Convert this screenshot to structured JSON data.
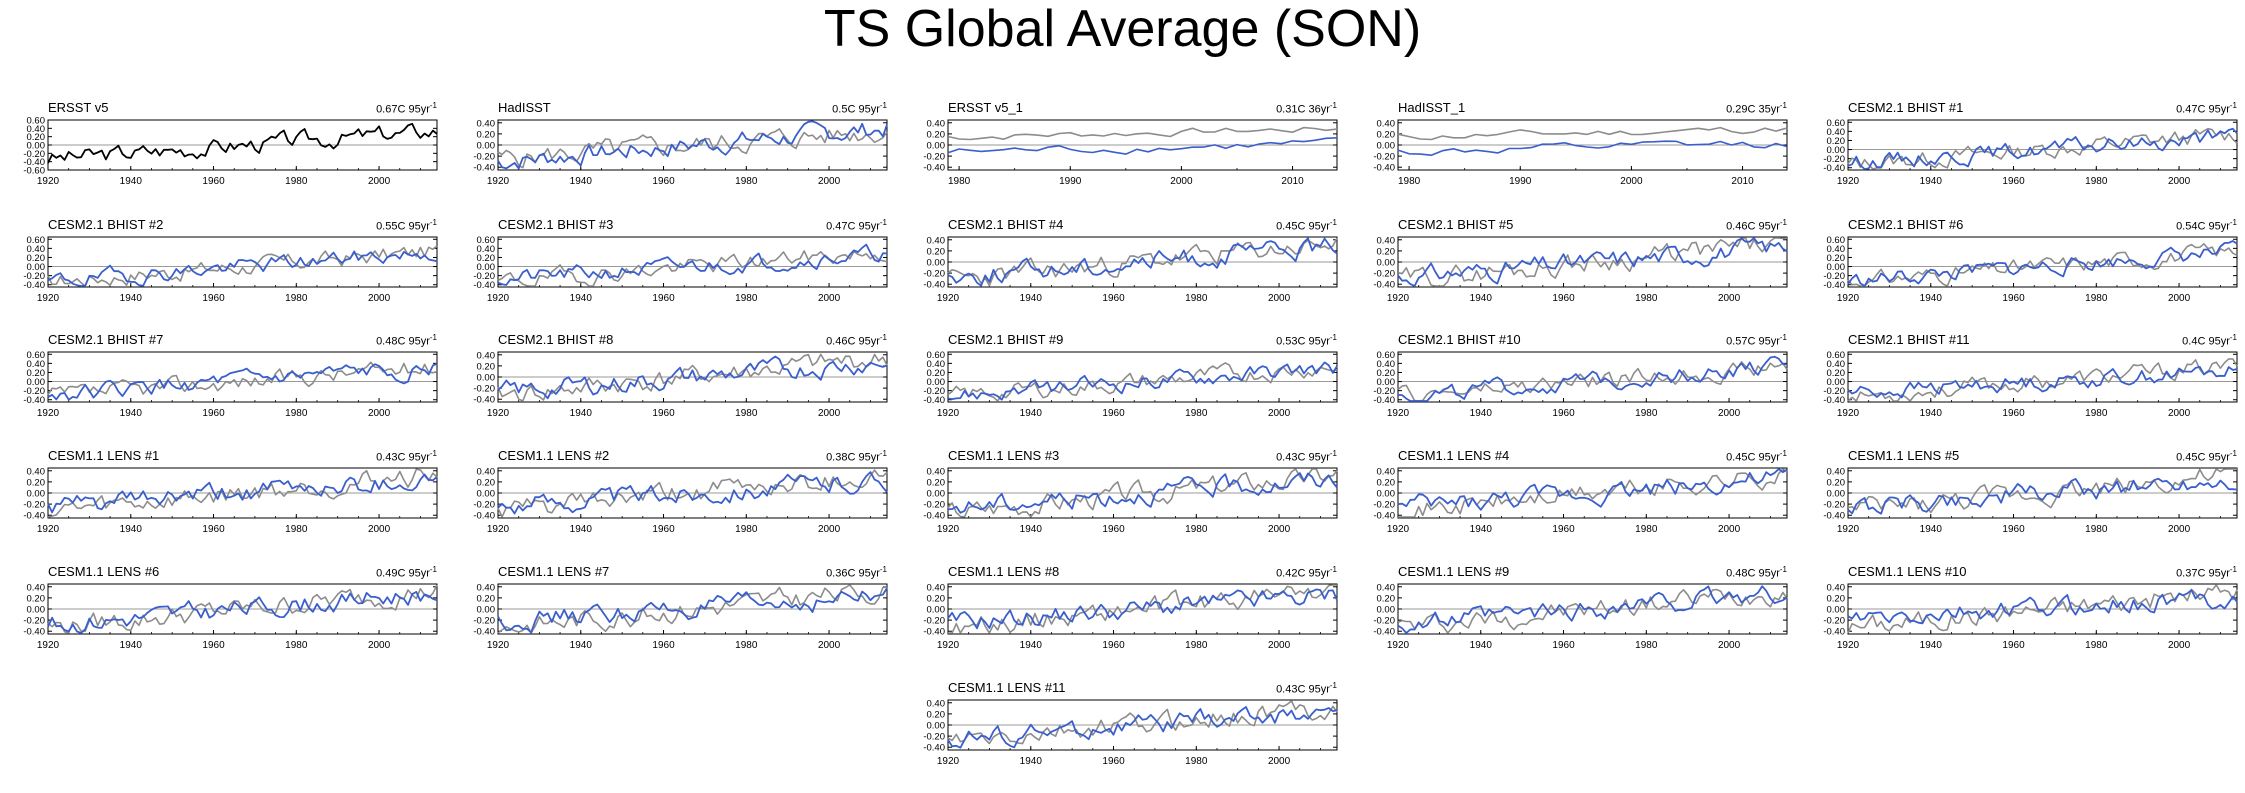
{
  "title": "TS Global Average (SON)",
  "colors": {
    "model": "#3a5fcd",
    "obs": "#8c8c8c",
    "obs_solo": "#000000",
    "zero_line": "#9a9a9a"
  },
  "chart_data": [
    {
      "type": "line",
      "title": "ERSST v5",
      "stat": "0.67C 95yr",
      "stat_sup": "-1",
      "xlim": [
        1920,
        2014
      ],
      "xticks": [
        1920,
        1940,
        1960,
        1980,
        2000
      ],
      "ylim": [
        -0.6,
        0.6
      ],
      "yticks": [
        "0.60",
        "0.40",
        "0.20",
        "0.00",
        "-0.20",
        "-0.40",
        "-0.60"
      ],
      "obs_only": true,
      "seed": 3,
      "trend": 0.67,
      "model_trend": 0
    },
    {
      "type": "line",
      "title": "HadISST",
      "stat": "0.5C 95yr",
      "stat_sup": "-1",
      "xlim": [
        1920,
        2014
      ],
      "xticks": [
        1920,
        1940,
        1960,
        1980,
        2000
      ],
      "ylim": [
        -0.45,
        0.45
      ],
      "yticks": [
        "0.40",
        "0.20",
        "0.00",
        "-0.20",
        "-0.40"
      ],
      "seed": 5,
      "trend": 0.5,
      "model_trend": 0.5
    },
    {
      "type": "line",
      "title": "ERSST v5_1",
      "stat": "0.31C 36yr",
      "stat_sup": "-1",
      "xlim": [
        1979,
        2014
      ],
      "xticks": [
        1980,
        1990,
        2000,
        2010
      ],
      "ylim": [
        -0.45,
        0.45
      ],
      "yticks": [
        "0.40",
        "0.20",
        "0.00",
        "-0.20",
        "-0.40"
      ],
      "short": true,
      "seed": 7,
      "trend": 0.31,
      "model_trend": 0.3
    },
    {
      "type": "line",
      "title": "HadISST_1",
      "stat": "0.29C 35yr",
      "stat_sup": "-1",
      "xlim": [
        1979,
        2014
      ],
      "xticks": [
        1980,
        1990,
        2000,
        2010
      ],
      "ylim": [
        -0.45,
        0.45
      ],
      "yticks": [
        "0.40",
        "0.20",
        "0.00",
        "-0.20",
        "-0.40"
      ],
      "short": true,
      "seed": 11,
      "trend": 0.29,
      "model_trend": 0.3
    },
    {
      "type": "line",
      "title": "CESM2.1 BHIST #1",
      "stat": "0.47C 95yr",
      "stat_sup": "-1",
      "xlim": [
        1920,
        2014
      ],
      "xticks": [
        1920,
        1940,
        1960,
        1980,
        2000
      ],
      "ylim": [
        -0.45,
        0.65
      ],
      "yticks": [
        "0.60",
        "0.40",
        "0.20",
        "0.00",
        "-0.20",
        "-0.40"
      ],
      "seed": 13,
      "trend": 0.67,
      "model_trend": 0.47
    },
    {
      "type": "line",
      "title": "CESM2.1 BHIST #2",
      "stat": "0.55C 95yr",
      "stat_sup": "-1",
      "xlim": [
        1920,
        2014
      ],
      "xticks": [
        1920,
        1940,
        1960,
        1980,
        2000
      ],
      "ylim": [
        -0.45,
        0.65
      ],
      "yticks": [
        "0.60",
        "0.40",
        "0.20",
        "0.00",
        "-0.20",
        "-0.40"
      ],
      "seed": 17,
      "trend": 0.67,
      "model_trend": 0.55
    },
    {
      "type": "line",
      "title": "CESM2.1 BHIST #3",
      "stat": "0.47C 95yr",
      "stat_sup": "-1",
      "xlim": [
        1920,
        2014
      ],
      "xticks": [
        1920,
        1940,
        1960,
        1980,
        2000
      ],
      "ylim": [
        -0.45,
        0.65
      ],
      "yticks": [
        "0.60",
        "0.40",
        "0.20",
        "0.00",
        "-0.20",
        "-0.40"
      ],
      "seed": 19,
      "trend": 0.67,
      "model_trend": 0.47
    },
    {
      "type": "line",
      "title": "CESM2.1 BHIST #4",
      "stat": "0.45C 95yr",
      "stat_sup": "-1",
      "xlim": [
        1920,
        2014
      ],
      "xticks": [
        1920,
        1940,
        1960,
        1980,
        2000
      ],
      "ylim": [
        -0.45,
        0.45
      ],
      "yticks": [
        "0.40",
        "0.20",
        "0.00",
        "-0.20",
        "-0.40"
      ],
      "seed": 23,
      "trend": 0.67,
      "model_trend": 0.45
    },
    {
      "type": "line",
      "title": "CESM2.1 BHIST #5",
      "stat": "0.46C 95yr",
      "stat_sup": "-1",
      "xlim": [
        1920,
        2014
      ],
      "xticks": [
        1920,
        1940,
        1960,
        1980,
        2000
      ],
      "ylim": [
        -0.45,
        0.45
      ],
      "yticks": [
        "0.40",
        "0.20",
        "0.00",
        "-0.20",
        "-0.40"
      ],
      "seed": 29,
      "trend": 0.67,
      "model_trend": 0.46
    },
    {
      "type": "line",
      "title": "CESM2.1 BHIST #6",
      "stat": "0.54C 95yr",
      "stat_sup": "-1",
      "xlim": [
        1920,
        2014
      ],
      "xticks": [
        1920,
        1940,
        1960,
        1980,
        2000
      ],
      "ylim": [
        -0.45,
        0.65
      ],
      "yticks": [
        "0.60",
        "0.40",
        "0.20",
        "0.00",
        "-0.20",
        "-0.40"
      ],
      "seed": 31,
      "trend": 0.67,
      "model_trend": 0.54
    },
    {
      "type": "line",
      "title": "CESM2.1 BHIST #7",
      "stat": "0.48C 95yr",
      "stat_sup": "-1",
      "xlim": [
        1920,
        2014
      ],
      "xticks": [
        1920,
        1940,
        1960,
        1980,
        2000
      ],
      "ylim": [
        -0.45,
        0.65
      ],
      "yticks": [
        "0.60",
        "0.40",
        "0.20",
        "0.00",
        "-0.20",
        "-0.40"
      ],
      "seed": 37,
      "trend": 0.67,
      "model_trend": 0.48
    },
    {
      "type": "line",
      "title": "CESM2.1 BHIST #8",
      "stat": "0.46C 95yr",
      "stat_sup": "-1",
      "xlim": [
        1920,
        2014
      ],
      "xticks": [
        1920,
        1940,
        1960,
        1980,
        2000
      ],
      "ylim": [
        -0.45,
        0.45
      ],
      "yticks": [
        "0.40",
        "0.20",
        "0.00",
        "-0.20",
        "-0.40"
      ],
      "seed": 41,
      "trend": 0.67,
      "model_trend": 0.46
    },
    {
      "type": "line",
      "title": "CESM2.1 BHIST #9",
      "stat": "0.53C 95yr",
      "stat_sup": "-1",
      "xlim": [
        1920,
        2014
      ],
      "xticks": [
        1920,
        1940,
        1960,
        1980,
        2000
      ],
      "ylim": [
        -0.45,
        0.65
      ],
      "yticks": [
        "0.60",
        "0.40",
        "0.20",
        "0.00",
        "-0.20",
        "-0.40"
      ],
      "seed": 43,
      "trend": 0.67,
      "model_trend": 0.53
    },
    {
      "type": "line",
      "title": "CESM2.1 BHIST #10",
      "stat": "0.57C 95yr",
      "stat_sup": "-1",
      "xlim": [
        1920,
        2014
      ],
      "xticks": [
        1920,
        1940,
        1960,
        1980,
        2000
      ],
      "ylim": [
        -0.45,
        0.65
      ],
      "yticks": [
        "0.60",
        "0.40",
        "0.20",
        "0.00",
        "-0.20",
        "-0.40"
      ],
      "seed": 47,
      "trend": 0.67,
      "model_trend": 0.57
    },
    {
      "type": "line",
      "title": "CESM2.1 BHIST #11",
      "stat": "0.4C 95yr",
      "stat_sup": "-1",
      "xlim": [
        1920,
        2014
      ],
      "xticks": [
        1920,
        1940,
        1960,
        1980,
        2000
      ],
      "ylim": [
        -0.45,
        0.65
      ],
      "yticks": [
        "0.60",
        "0.40",
        "0.20",
        "0.00",
        "-0.20",
        "-0.40"
      ],
      "seed": 53,
      "trend": 0.67,
      "model_trend": 0.4
    },
    {
      "type": "line",
      "title": "CESM1.1 LENS #1",
      "stat": "0.43C 95yr",
      "stat_sup": "-1",
      "xlim": [
        1920,
        2014
      ],
      "xticks": [
        1920,
        1940,
        1960,
        1980,
        2000
      ],
      "ylim": [
        -0.45,
        0.45
      ],
      "yticks": [
        "0.40",
        "0.20",
        "0.00",
        "-0.20",
        "-0.40"
      ],
      "seed": 59,
      "trend": 0.67,
      "model_trend": 0.43
    },
    {
      "type": "line",
      "title": "CESM1.1 LENS #2",
      "stat": "0.38C 95yr",
      "stat_sup": "-1",
      "xlim": [
        1920,
        2014
      ],
      "xticks": [
        1920,
        1940,
        1960,
        1980,
        2000
      ],
      "ylim": [
        -0.45,
        0.45
      ],
      "yticks": [
        "0.40",
        "0.20",
        "0.00",
        "-0.20",
        "-0.40"
      ],
      "seed": 61,
      "trend": 0.67,
      "model_trend": 0.38
    },
    {
      "type": "line",
      "title": "CESM1.1 LENS #3",
      "stat": "0.43C 95yr",
      "stat_sup": "-1",
      "xlim": [
        1920,
        2014
      ],
      "xticks": [
        1920,
        1940,
        1960,
        1980,
        2000
      ],
      "ylim": [
        -0.45,
        0.45
      ],
      "yticks": [
        "0.40",
        "0.20",
        "0.00",
        "-0.20",
        "-0.40"
      ],
      "seed": 67,
      "trend": 0.67,
      "model_trend": 0.43
    },
    {
      "type": "line",
      "title": "CESM1.1 LENS #4",
      "stat": "0.45C 95yr",
      "stat_sup": "-1",
      "xlim": [
        1920,
        2014
      ],
      "xticks": [
        1920,
        1940,
        1960,
        1980,
        2000
      ],
      "ylim": [
        -0.45,
        0.45
      ],
      "yticks": [
        "0.40",
        "0.20",
        "0.00",
        "-0.20",
        "-0.40"
      ],
      "seed": 71,
      "trend": 0.67,
      "model_trend": 0.45
    },
    {
      "type": "line",
      "title": "CESM1.1 LENS #5",
      "stat": "0.45C 95yr",
      "stat_sup": "-1",
      "xlim": [
        1920,
        2014
      ],
      "xticks": [
        1920,
        1940,
        1960,
        1980,
        2000
      ],
      "ylim": [
        -0.45,
        0.45
      ],
      "yticks": [
        "0.40",
        "0.20",
        "0.00",
        "-0.20",
        "-0.40"
      ],
      "seed": 73,
      "trend": 0.67,
      "model_trend": 0.45
    },
    {
      "type": "line",
      "title": "CESM1.1 LENS #6",
      "stat": "0.49C 95yr",
      "stat_sup": "-1",
      "xlim": [
        1920,
        2014
      ],
      "xticks": [
        1920,
        1940,
        1960,
        1980,
        2000
      ],
      "ylim": [
        -0.45,
        0.45
      ],
      "yticks": [
        "0.40",
        "0.20",
        "0.00",
        "-0.20",
        "-0.40"
      ],
      "seed": 79,
      "trend": 0.67,
      "model_trend": 0.49
    },
    {
      "type": "line",
      "title": "CESM1.1 LENS #7",
      "stat": "0.36C 95yr",
      "stat_sup": "-1",
      "xlim": [
        1920,
        2014
      ],
      "xticks": [
        1920,
        1940,
        1960,
        1980,
        2000
      ],
      "ylim": [
        -0.45,
        0.45
      ],
      "yticks": [
        "0.40",
        "0.20",
        "0.00",
        "-0.20",
        "-0.40"
      ],
      "seed": 83,
      "trend": 0.67,
      "model_trend": 0.36
    },
    {
      "type": "line",
      "title": "CESM1.1 LENS #8",
      "stat": "0.42C 95yr",
      "stat_sup": "-1",
      "xlim": [
        1920,
        2014
      ],
      "xticks": [
        1920,
        1940,
        1960,
        1980,
        2000
      ],
      "ylim": [
        -0.45,
        0.45
      ],
      "yticks": [
        "0.40",
        "0.20",
        "0.00",
        "-0.20",
        "-0.40"
      ],
      "seed": 89,
      "trend": 0.67,
      "model_trend": 0.42
    },
    {
      "type": "line",
      "title": "CESM1.1 LENS #9",
      "stat": "0.48C 95yr",
      "stat_sup": "-1",
      "xlim": [
        1920,
        2014
      ],
      "xticks": [
        1920,
        1940,
        1960,
        1980,
        2000
      ],
      "ylim": [
        -0.45,
        0.45
      ],
      "yticks": [
        "0.40",
        "0.20",
        "0.00",
        "-0.20",
        "-0.40"
      ],
      "seed": 97,
      "trend": 0.67,
      "model_trend": 0.48
    },
    {
      "type": "line",
      "title": "CESM1.1 LENS #10",
      "stat": "0.37C 95yr",
      "stat_sup": "-1",
      "xlim": [
        1920,
        2014
      ],
      "xticks": [
        1920,
        1940,
        1960,
        1980,
        2000
      ],
      "ylim": [
        -0.45,
        0.45
      ],
      "yticks": [
        "0.40",
        "0.20",
        "0.00",
        "-0.20",
        "-0.40"
      ],
      "seed": 101,
      "trend": 0.67,
      "model_trend": 0.37
    },
    {
      "type": "line",
      "title": "CESM1.1 LENS #11",
      "stat": "0.43C 95yr",
      "stat_sup": "-1",
      "xlim": [
        1920,
        2014
      ],
      "xticks": [
        1920,
        1940,
        1960,
        1980,
        2000
      ],
      "ylim": [
        -0.45,
        0.45
      ],
      "yticks": [
        "0.40",
        "0.20",
        "0.00",
        "-0.20",
        "-0.40"
      ],
      "seed": 103,
      "trend": 0.67,
      "model_trend": 0.43
    }
  ]
}
